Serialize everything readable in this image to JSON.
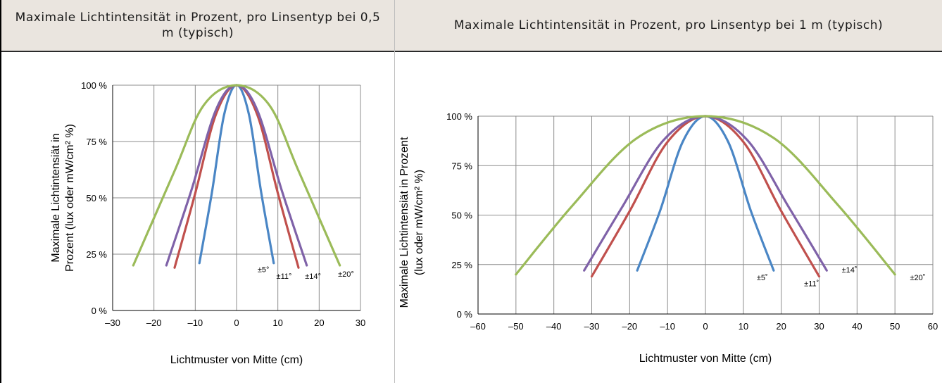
{
  "headers": {
    "left": "Maximale Lichtintensität in Prozent, pro Linsentyp bei 0,5 m (typisch)",
    "right": "Maximale Lichtintensität in Prozent, pro Linsentyp bei 1 m (typisch)"
  },
  "colors": {
    "blue": "#4a86c5",
    "red": "#c0504d",
    "purple": "#7f62a8",
    "green": "#9bbb59",
    "grid": "#8c8c8c",
    "header_bg": "#eae5df"
  },
  "chart_data": [
    {
      "type": "line",
      "title": "",
      "xlabel": "Lichtmuster von Mitte (cm)",
      "ylabel": [
        "Maximale Lichtintensiät in",
        "Prozent (lux oder mW/cm² %)"
      ],
      "xlim": [
        -30,
        30
      ],
      "ylim": [
        0,
        100
      ],
      "x_ticks": [
        -30,
        -20,
        -10,
        0,
        10,
        20,
        30
      ],
      "x_tick_labels": [
        "–30",
        "–20",
        "–10",
        "0",
        "10",
        "20",
        "30"
      ],
      "y_ticks": [
        0,
        25,
        50,
        75,
        100
      ],
      "y_tick_labels": [
        "0 %",
        "25 %",
        "50 %",
        "75 %",
        "100 %"
      ],
      "grid": true,
      "series": [
        {
          "name": "±5°",
          "color": "#4a86c5",
          "x": [
            -9,
            -6,
            -3,
            0,
            3,
            6,
            9
          ],
          "y": [
            21,
            52,
            87,
            100,
            87,
            52,
            21
          ]
        },
        {
          "name": "±11°",
          "color": "#c0504d",
          "x": [
            -15,
            -10,
            -5,
            0,
            5,
            10,
            15
          ],
          "y": [
            19,
            52,
            87,
            100,
            87,
            52,
            19
          ]
        },
        {
          "name": "±14°",
          "color": "#7f62a8",
          "x": [
            -17,
            -11,
            -5,
            0,
            5,
            11,
            17
          ],
          "y": [
            20,
            53,
            89,
            100,
            89,
            53,
            20
          ]
        },
        {
          "name": "±20°",
          "color": "#9bbb59",
          "x": [
            -25,
            -15,
            -8,
            0,
            8,
            15,
            25
          ],
          "y": [
            20,
            62,
            91,
            100,
            91,
            62,
            20
          ]
        }
      ],
      "annotations": [
        {
          "text": "±5°",
          "x": 6.5,
          "y": 17
        },
        {
          "text": "±11°",
          "x": 11.5,
          "y": 14
        },
        {
          "text": "±14°",
          "x": 18.5,
          "y": 14
        },
        {
          "text": "±20°",
          "x": 26.5,
          "y": 15
        }
      ]
    },
    {
      "type": "line",
      "title": "",
      "xlabel": "Lichtmuster von Mitte (cm)",
      "ylabel": [
        "Maximale Lichtintensiät in Prozent",
        "(lux oder mW/cm² %)"
      ],
      "xlim": [
        -60,
        60
      ],
      "ylim": [
        0,
        100
      ],
      "x_ticks": [
        -60,
        -50,
        -40,
        -30,
        -20,
        -10,
        0,
        10,
        20,
        30,
        40,
        50,
        60
      ],
      "x_tick_labels": [
        "–60",
        "–50",
        "–40",
        "–30",
        "–20",
        "–10",
        "0",
        "10",
        "20",
        "30",
        "40",
        "50",
        "60"
      ],
      "y_ticks": [
        0,
        25,
        50,
        75,
        100
      ],
      "y_tick_labels": [
        "0 %",
        "25 %",
        "50 %",
        "75 %",
        "100 %"
      ],
      "grid": true,
      "series": [
        {
          "name": "±5˚",
          "color": "#4a86c5",
          "x": [
            -18,
            -12,
            -6,
            0,
            6,
            12,
            18
          ],
          "y": [
            22,
            52,
            87,
            100,
            87,
            52,
            22
          ]
        },
        {
          "name": "±11˚",
          "color": "#c0504d",
          "x": [
            -30,
            -20,
            -10,
            0,
            10,
            20,
            30
          ],
          "y": [
            19,
            52,
            87,
            100,
            87,
            52,
            19
          ]
        },
        {
          "name": "±14˚",
          "color": "#7f62a8",
          "x": [
            -32,
            -22,
            -11,
            0,
            11,
            22,
            32
          ],
          "y": [
            22,
            54,
            88,
            100,
            88,
            54,
            22
          ]
        },
        {
          "name": "±20˚",
          "color": "#9bbb59",
          "x": [
            -50,
            -35,
            -18,
            0,
            18,
            35,
            50
          ],
          "y": [
            20,
            55,
            89,
            100,
            89,
            55,
            20
          ]
        }
      ],
      "annotations": [
        {
          "text": "±5˚",
          "x": 15,
          "y": 17
        },
        {
          "text": "±11˚",
          "x": 28,
          "y": 14
        },
        {
          "text": "±14˚",
          "x": 38,
          "y": 21
        },
        {
          "text": "±20˚",
          "x": 56,
          "y": 17
        }
      ]
    }
  ]
}
